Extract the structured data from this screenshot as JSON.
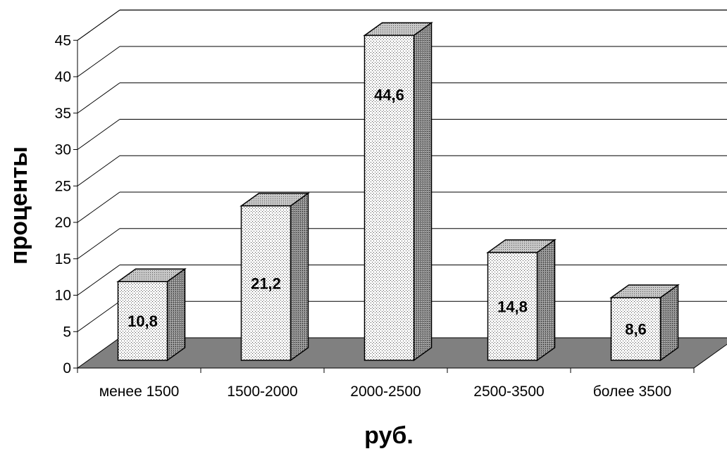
{
  "chart_data": {
    "type": "bar",
    "categories": [
      "менее 1500",
      "1500-2000",
      "2000-2500",
      "2500-3500",
      "более 3500"
    ],
    "values": [
      10.8,
      21.2,
      44.6,
      14.8,
      8.6
    ],
    "data_labels": [
      "10,8",
      "21,2",
      "44,6",
      "14,8",
      "8,6"
    ],
    "title": "",
    "xlabel": "руб.",
    "ylabel": "проценты",
    "ylim": [
      0,
      45
    ],
    "yticks": [
      0,
      5,
      10,
      15,
      20,
      25,
      30,
      35,
      40,
      45
    ],
    "grid": true,
    "style": "3d"
  }
}
